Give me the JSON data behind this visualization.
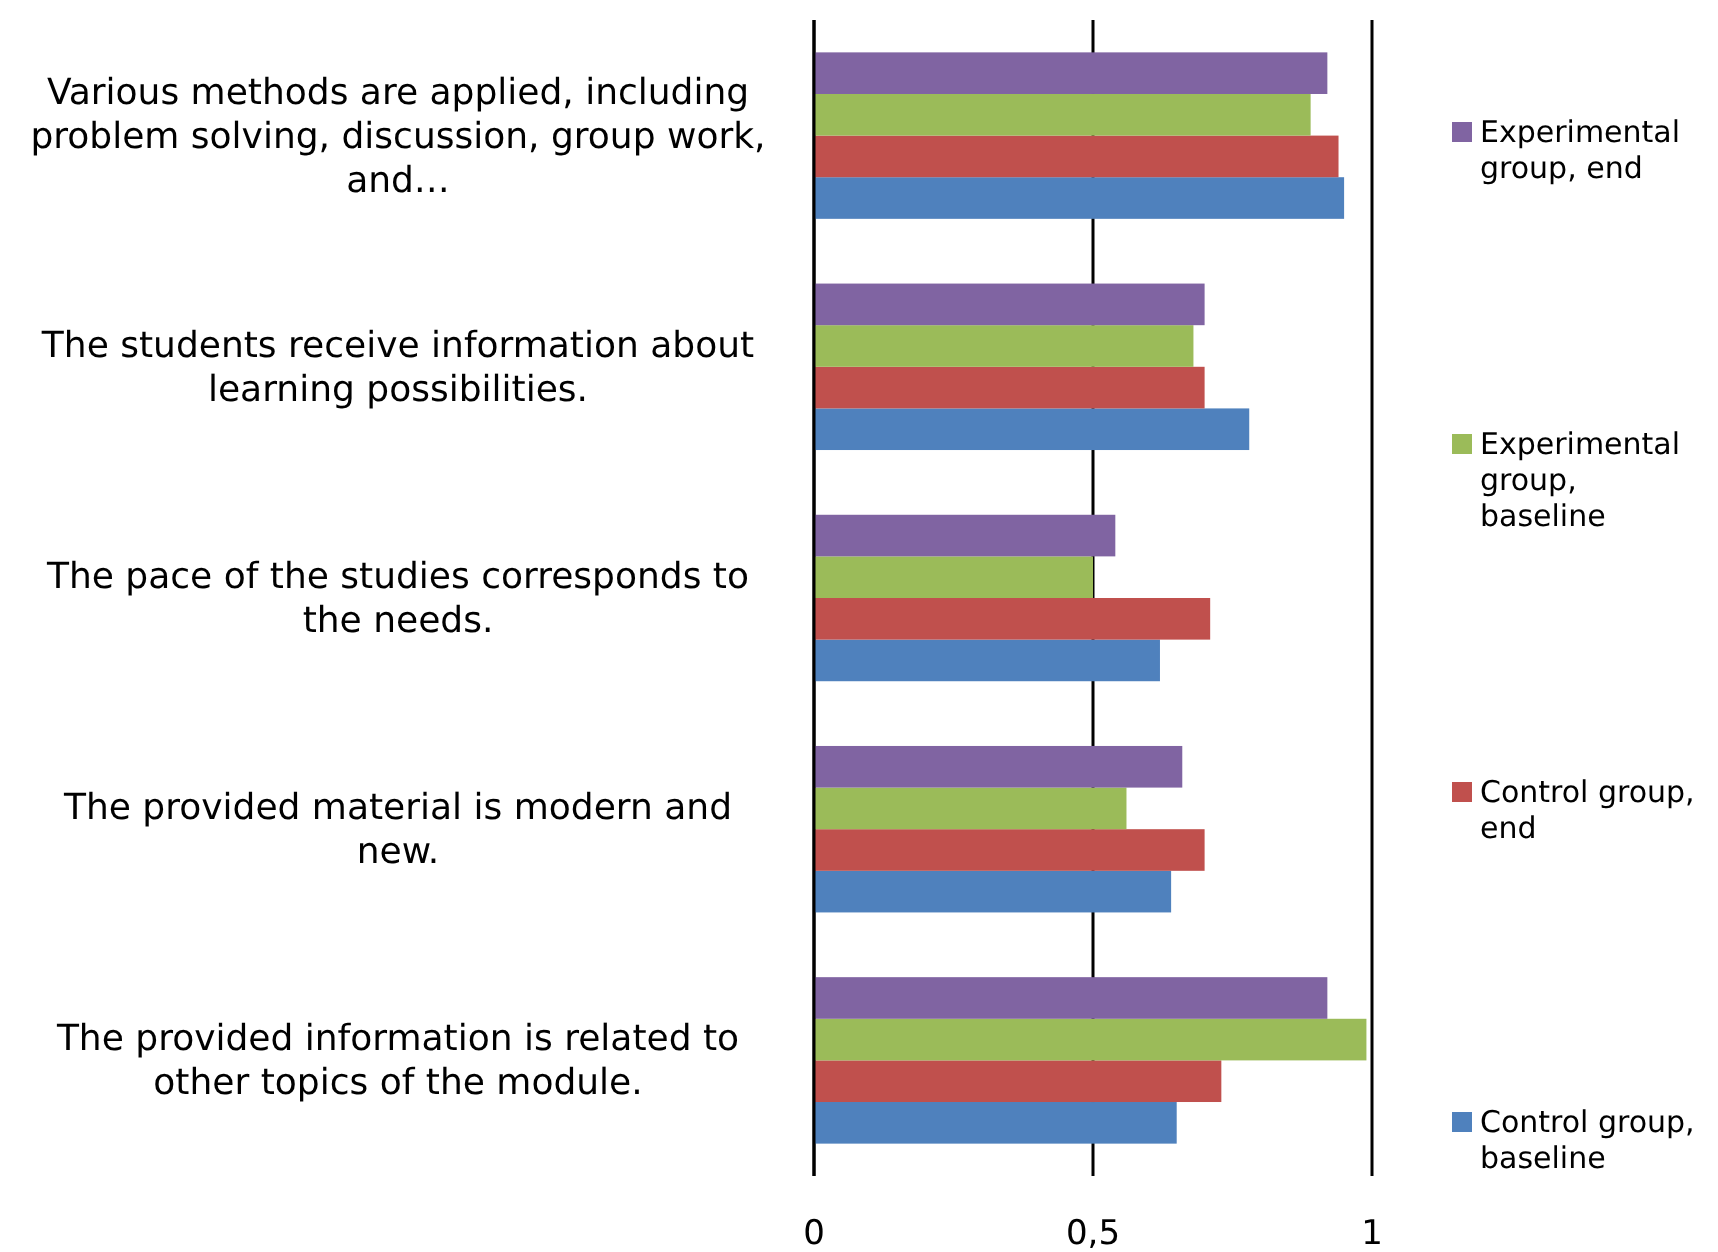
{
  "chart_data": {
    "type": "bar",
    "orientation": "horizontal",
    "categories": [
      "Various methods are applied, including problem solving, discussion, group work, and…",
      "The students receive information about learning possibilities.",
      "The pace of the studies corresponds to the needs.",
      "The provided material is modern and new.",
      "The provided information is related to other topics of the module."
    ],
    "series": [
      {
        "name": "Control group, baseline",
        "color": "#4f81bd",
        "values": [
          0.95,
          0.78,
          0.62,
          0.64,
          0.65
        ]
      },
      {
        "name": "Control group, end",
        "color": "#c0504d",
        "values": [
          0.94,
          0.7,
          0.71,
          0.7,
          0.73
        ]
      },
      {
        "name": "Experimental group, baseline",
        "color": "#9bbb59",
        "values": [
          0.89,
          0.68,
          0.5,
          0.56,
          0.99
        ]
      },
      {
        "name": "Experimental group, end",
        "color": "#8064a2",
        "values": [
          0.92,
          0.7,
          0.54,
          0.66,
          0.92
        ]
      }
    ],
    "xlim": [
      0,
      1
    ],
    "xticks": [
      0,
      {
        "value": 0.5,
        "label": "0,5"
      },
      1
    ],
    "grid": "x",
    "legend": "right"
  }
}
